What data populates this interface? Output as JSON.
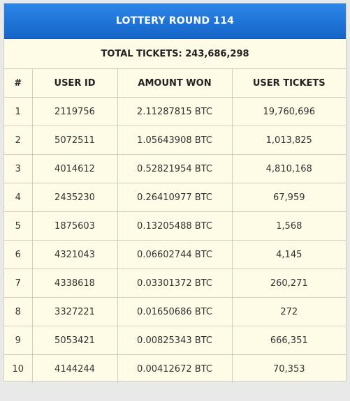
{
  "header": {
    "title": "LOTTERY ROUND 114"
  },
  "summary": {
    "total_tickets": "TOTAL TICKETS: 243,686,298"
  },
  "table": {
    "columns": [
      "#",
      "USER ID",
      "AMOUNT WON",
      "USER TICKETS"
    ],
    "rows": [
      [
        "1",
        "2119756",
        "2.11287815 BTC",
        "19,760,696"
      ],
      [
        "2",
        "5072511",
        "1.05643908 BTC",
        "1,013,825"
      ],
      [
        "3",
        "4014612",
        "0.52821954 BTC",
        "4,810,168"
      ],
      [
        "4",
        "2435230",
        "0.26410977 BTC",
        "67,959"
      ],
      [
        "5",
        "1875603",
        "0.13205488 BTC",
        "1,568"
      ],
      [
        "6",
        "4321043",
        "0.06602744 BTC",
        "4,145"
      ],
      [
        "7",
        "4338618",
        "0.03301372 BTC",
        "260,271"
      ],
      [
        "8",
        "3327221",
        "0.01650686 BTC",
        "272"
      ],
      [
        "9",
        "5053421",
        "0.00825343 BTC",
        "666,351"
      ],
      [
        "10",
        "4144244",
        "0.00412672 BTC",
        "70,353"
      ]
    ]
  },
  "colors": {
    "header_bg": "#1a6fd6",
    "panel_bg": "#fefbe7",
    "border": "#cfcfbf"
  }
}
